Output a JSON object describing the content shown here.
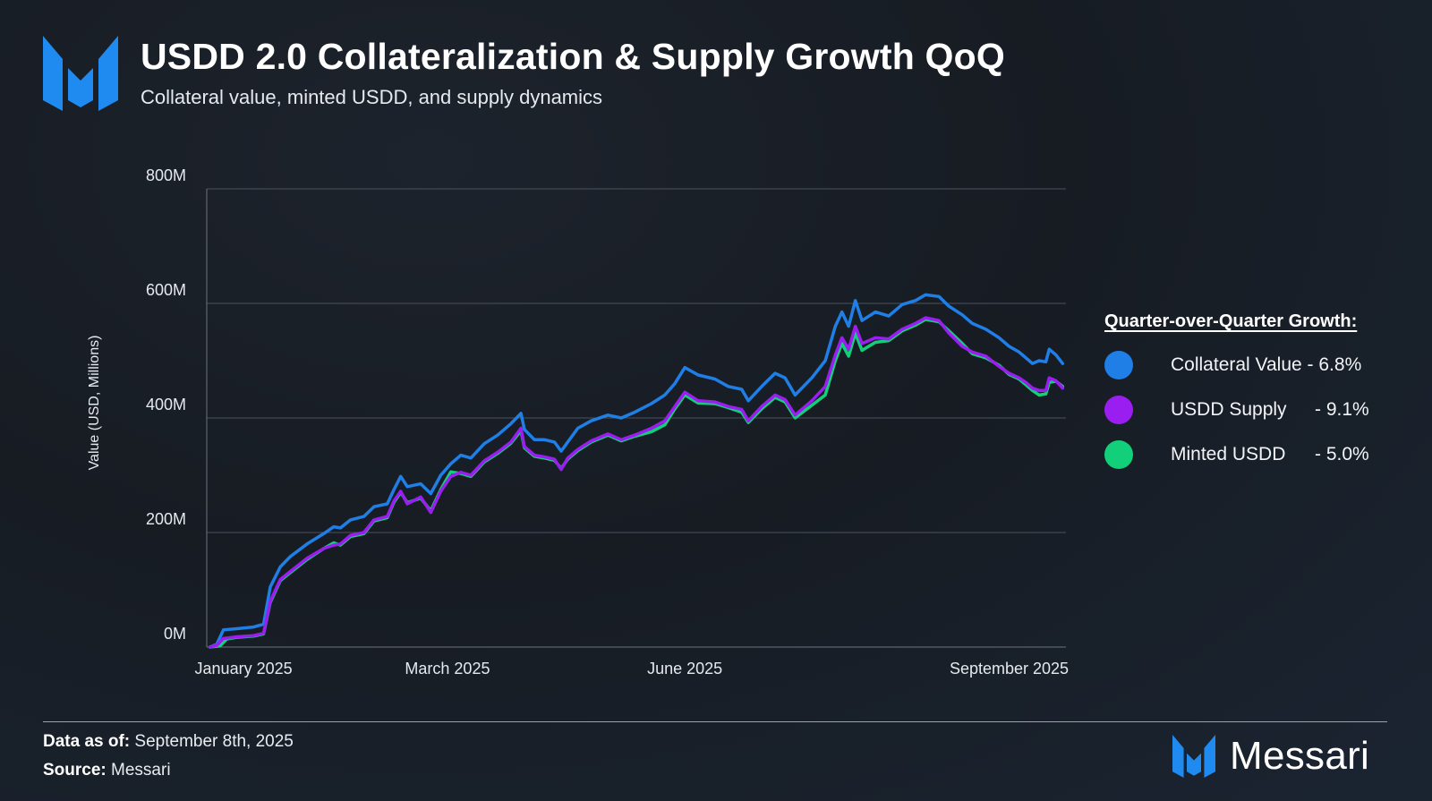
{
  "header": {
    "title": "USDD 2.0 Collateralization & Supply Growth QoQ",
    "subtitle": "Collateral value, minted USDD, and supply dynamics"
  },
  "legend": {
    "title": "Quarter-over-Quarter Growth:",
    "items": [
      {
        "name": "Collateral Value",
        "growth": "- 6.8%",
        "color": "#1f7fe6"
      },
      {
        "name": "USDD Supply",
        "growth": "- 9.1%",
        "color": "#9b1ef0"
      },
      {
        "name": "Minted USDD",
        "growth": "- 5.0%",
        "color": "#12d07a"
      }
    ]
  },
  "footer": {
    "data_as_of_label": "Data as of:",
    "data_as_of_value": "September 8th, 2025",
    "source_label": "Source:",
    "source_value": "Messari",
    "brand": "Messari"
  },
  "colors": {
    "collateral": "#1f7fe6",
    "supply": "#9b1ef0",
    "minted": "#12d07a",
    "brand": "#1f8bf0",
    "grid": "#4a525c",
    "axis_text": "#e6e9ee"
  },
  "chart_data": {
    "type": "line",
    "ylabel": "Value (USD, Millions)",
    "xlabel": "",
    "ylim": [
      0,
      800
    ],
    "y_tick_labels": [
      "0M",
      "200M",
      "400M",
      "600M",
      "800M"
    ],
    "y_tick_values": [
      0,
      200,
      400,
      600,
      800
    ],
    "x_tick_labels": [
      "January 2025",
      "March 2025",
      "June 2025",
      "September 2025"
    ],
    "x_tick_dates": [
      "2025-01-12",
      "2025-03-14",
      "2025-05-24",
      "2025-08-29"
    ],
    "grid": true,
    "legend_placement": "right",
    "series": [
      {
        "name": "Collateral Value",
        "key": "collateral",
        "points": [
          [
            "2025-01-02",
            0
          ],
          [
            "2025-01-04",
            5
          ],
          [
            "2025-01-06",
            30
          ],
          [
            "2025-01-10",
            32
          ],
          [
            "2025-01-15",
            35
          ],
          [
            "2025-01-18",
            40
          ],
          [
            "2025-01-20",
            105
          ],
          [
            "2025-01-23",
            140
          ],
          [
            "2025-01-26",
            158
          ],
          [
            "2025-01-31",
            180
          ],
          [
            "2025-02-05",
            198
          ],
          [
            "2025-02-08",
            210
          ],
          [
            "2025-02-10",
            208
          ],
          [
            "2025-02-13",
            222
          ],
          [
            "2025-02-17",
            228
          ],
          [
            "2025-02-20",
            245
          ],
          [
            "2025-02-24",
            250
          ],
          [
            "2025-02-26",
            275
          ],
          [
            "2025-02-28",
            298
          ],
          [
            "2025-03-02",
            280
          ],
          [
            "2025-03-06",
            285
          ],
          [
            "2025-03-09",
            268
          ],
          [
            "2025-03-12",
            300
          ],
          [
            "2025-03-15",
            320
          ],
          [
            "2025-03-18",
            335
          ],
          [
            "2025-03-21",
            330
          ],
          [
            "2025-03-25",
            355
          ],
          [
            "2025-03-29",
            370
          ],
          [
            "2025-04-02",
            390
          ],
          [
            "2025-04-05",
            408
          ],
          [
            "2025-04-06",
            380
          ],
          [
            "2025-04-09",
            362
          ],
          [
            "2025-04-12",
            362
          ],
          [
            "2025-04-15",
            358
          ],
          [
            "2025-04-17",
            342
          ],
          [
            "2025-04-19",
            358
          ],
          [
            "2025-04-22",
            382
          ],
          [
            "2025-04-26",
            395
          ],
          [
            "2025-05-01",
            405
          ],
          [
            "2025-05-05",
            400
          ],
          [
            "2025-05-09",
            410
          ],
          [
            "2025-05-14",
            425
          ],
          [
            "2025-05-18",
            440
          ],
          [
            "2025-05-21",
            460
          ],
          [
            "2025-05-24",
            488
          ],
          [
            "2025-05-28",
            475
          ],
          [
            "2025-06-02",
            468
          ],
          [
            "2025-06-06",
            455
          ],
          [
            "2025-06-10",
            450
          ],
          [
            "2025-06-12",
            430
          ],
          [
            "2025-06-16",
            455
          ],
          [
            "2025-06-20",
            478
          ],
          [
            "2025-06-23",
            470
          ],
          [
            "2025-06-26",
            440
          ],
          [
            "2025-07-01",
            470
          ],
          [
            "2025-07-05",
            500
          ],
          [
            "2025-07-08",
            560
          ],
          [
            "2025-07-10",
            585
          ],
          [
            "2025-07-12",
            560
          ],
          [
            "2025-07-14",
            605
          ],
          [
            "2025-07-16",
            570
          ],
          [
            "2025-07-20",
            585
          ],
          [
            "2025-07-24",
            578
          ],
          [
            "2025-07-28",
            598
          ],
          [
            "2025-08-01",
            605
          ],
          [
            "2025-08-04",
            615
          ],
          [
            "2025-08-08",
            612
          ],
          [
            "2025-08-11",
            595
          ],
          [
            "2025-08-15",
            580
          ],
          [
            "2025-08-18",
            565
          ],
          [
            "2025-08-22",
            555
          ],
          [
            "2025-08-26",
            540
          ],
          [
            "2025-08-29",
            525
          ],
          [
            "2025-09-01",
            515
          ],
          [
            "2025-09-03",
            505
          ],
          [
            "2025-09-05",
            495
          ],
          [
            "2025-09-07",
            500
          ],
          [
            "2025-09-09",
            498
          ],
          [
            "2025-09-10",
            520
          ],
          [
            "2025-09-12",
            510
          ],
          [
            "2025-09-14",
            495
          ]
        ]
      },
      {
        "name": "USDD Supply",
        "key": "supply",
        "points": [
          [
            "2025-01-02",
            0
          ],
          [
            "2025-01-04",
            3
          ],
          [
            "2025-01-06",
            15
          ],
          [
            "2025-01-10",
            18
          ],
          [
            "2025-01-15",
            20
          ],
          [
            "2025-01-18",
            24
          ],
          [
            "2025-01-20",
            80
          ],
          [
            "2025-01-23",
            118
          ],
          [
            "2025-01-26",
            132
          ],
          [
            "2025-01-31",
            155
          ],
          [
            "2025-02-05",
            172
          ],
          [
            "2025-02-08",
            178
          ],
          [
            "2025-02-10",
            180
          ],
          [
            "2025-02-13",
            195
          ],
          [
            "2025-02-17",
            200
          ],
          [
            "2025-02-20",
            222
          ],
          [
            "2025-02-24",
            228
          ],
          [
            "2025-02-26",
            255
          ],
          [
            "2025-02-28",
            272
          ],
          [
            "2025-03-02",
            250
          ],
          [
            "2025-03-06",
            262
          ],
          [
            "2025-03-09",
            235
          ],
          [
            "2025-03-12",
            272
          ],
          [
            "2025-03-15",
            298
          ],
          [
            "2025-03-18",
            305
          ],
          [
            "2025-03-21",
            300
          ],
          [
            "2025-03-25",
            325
          ],
          [
            "2025-03-29",
            340
          ],
          [
            "2025-04-02",
            358
          ],
          [
            "2025-04-05",
            382
          ],
          [
            "2025-04-06",
            350
          ],
          [
            "2025-04-09",
            335
          ],
          [
            "2025-04-12",
            332
          ],
          [
            "2025-04-15",
            328
          ],
          [
            "2025-04-17",
            310
          ],
          [
            "2025-04-19",
            330
          ],
          [
            "2025-04-22",
            345
          ],
          [
            "2025-04-26",
            360
          ],
          [
            "2025-05-01",
            372
          ],
          [
            "2025-05-05",
            362
          ],
          [
            "2025-05-09",
            370
          ],
          [
            "2025-05-14",
            382
          ],
          [
            "2025-05-18",
            395
          ],
          [
            "2025-05-21",
            420
          ],
          [
            "2025-05-24",
            445
          ],
          [
            "2025-05-28",
            430
          ],
          [
            "2025-06-02",
            428
          ],
          [
            "2025-06-06",
            420
          ],
          [
            "2025-06-10",
            415
          ],
          [
            "2025-06-12",
            395
          ],
          [
            "2025-06-16",
            420
          ],
          [
            "2025-06-20",
            440
          ],
          [
            "2025-06-23",
            432
          ],
          [
            "2025-06-26",
            405
          ],
          [
            "2025-07-01",
            430
          ],
          [
            "2025-07-05",
            455
          ],
          [
            "2025-07-08",
            510
          ],
          [
            "2025-07-10",
            540
          ],
          [
            "2025-07-12",
            520
          ],
          [
            "2025-07-14",
            560
          ],
          [
            "2025-07-16",
            530
          ],
          [
            "2025-07-20",
            540
          ],
          [
            "2025-07-24",
            538
          ],
          [
            "2025-07-28",
            555
          ],
          [
            "2025-08-01",
            565
          ],
          [
            "2025-08-04",
            575
          ],
          [
            "2025-08-08",
            570
          ],
          [
            "2025-08-11",
            548
          ],
          [
            "2025-08-15",
            525
          ],
          [
            "2025-08-18",
            515
          ],
          [
            "2025-08-22",
            508
          ],
          [
            "2025-08-26",
            490
          ],
          [
            "2025-08-29",
            478
          ],
          [
            "2025-09-01",
            470
          ],
          [
            "2025-09-03",
            462
          ],
          [
            "2025-09-05",
            452
          ],
          [
            "2025-09-07",
            448
          ],
          [
            "2025-09-09",
            448
          ],
          [
            "2025-09-10",
            470
          ],
          [
            "2025-09-12",
            465
          ],
          [
            "2025-09-14",
            452
          ]
        ]
      },
      {
        "name": "Minted USDD",
        "key": "minted",
        "points": [
          [
            "2025-01-02",
            0
          ],
          [
            "2025-01-05",
            2
          ],
          [
            "2025-01-07",
            14
          ],
          [
            "2025-01-10",
            17
          ],
          [
            "2025-01-15",
            19
          ],
          [
            "2025-01-18",
            23
          ],
          [
            "2025-01-20",
            78
          ],
          [
            "2025-01-23",
            116
          ],
          [
            "2025-01-26",
            130
          ],
          [
            "2025-01-31",
            153
          ],
          [
            "2025-02-05",
            172
          ],
          [
            "2025-02-08",
            182
          ],
          [
            "2025-02-10",
            178
          ],
          [
            "2025-02-13",
            193
          ],
          [
            "2025-02-17",
            198
          ],
          [
            "2025-02-20",
            220
          ],
          [
            "2025-02-24",
            226
          ],
          [
            "2025-02-26",
            253
          ],
          [
            "2025-02-28",
            270
          ],
          [
            "2025-03-02",
            252
          ],
          [
            "2025-03-06",
            260
          ],
          [
            "2025-03-09",
            238
          ],
          [
            "2025-03-12",
            275
          ],
          [
            "2025-03-15",
            306
          ],
          [
            "2025-03-18",
            303
          ],
          [
            "2025-03-21",
            298
          ],
          [
            "2025-03-25",
            323
          ],
          [
            "2025-03-29",
            338
          ],
          [
            "2025-04-02",
            356
          ],
          [
            "2025-04-05",
            378
          ],
          [
            "2025-04-06",
            348
          ],
          [
            "2025-04-09",
            333
          ],
          [
            "2025-04-12",
            330
          ],
          [
            "2025-04-15",
            326
          ],
          [
            "2025-04-17",
            312
          ],
          [
            "2025-04-19",
            328
          ],
          [
            "2025-04-22",
            343
          ],
          [
            "2025-04-26",
            358
          ],
          [
            "2025-05-01",
            370
          ],
          [
            "2025-05-05",
            360
          ],
          [
            "2025-05-09",
            368
          ],
          [
            "2025-05-14",
            376
          ],
          [
            "2025-05-18",
            388
          ],
          [
            "2025-05-21",
            416
          ],
          [
            "2025-05-24",
            440
          ],
          [
            "2025-05-28",
            426
          ],
          [
            "2025-06-02",
            425
          ],
          [
            "2025-06-06",
            418
          ],
          [
            "2025-06-10",
            410
          ],
          [
            "2025-06-12",
            392
          ],
          [
            "2025-06-16",
            416
          ],
          [
            "2025-06-20",
            436
          ],
          [
            "2025-06-23",
            428
          ],
          [
            "2025-06-26",
            400
          ],
          [
            "2025-07-01",
            422
          ],
          [
            "2025-07-05",
            440
          ],
          [
            "2025-07-08",
            500
          ],
          [
            "2025-07-10",
            530
          ],
          [
            "2025-07-12",
            508
          ],
          [
            "2025-07-14",
            548
          ],
          [
            "2025-07-16",
            518
          ],
          [
            "2025-07-20",
            532
          ],
          [
            "2025-07-24",
            535
          ],
          [
            "2025-07-28",
            552
          ],
          [
            "2025-08-01",
            562
          ],
          [
            "2025-08-04",
            572
          ],
          [
            "2025-08-08",
            568
          ],
          [
            "2025-08-11",
            552
          ],
          [
            "2025-08-15",
            530
          ],
          [
            "2025-08-18",
            512
          ],
          [
            "2025-08-22",
            505
          ],
          [
            "2025-08-26",
            492
          ],
          [
            "2025-08-29",
            476
          ],
          [
            "2025-09-01",
            468
          ],
          [
            "2025-09-03",
            458
          ],
          [
            "2025-09-05",
            448
          ],
          [
            "2025-09-07",
            440
          ],
          [
            "2025-09-09",
            442
          ],
          [
            "2025-09-10",
            462
          ],
          [
            "2025-09-12",
            464
          ],
          [
            "2025-09-14",
            455
          ]
        ]
      }
    ]
  }
}
